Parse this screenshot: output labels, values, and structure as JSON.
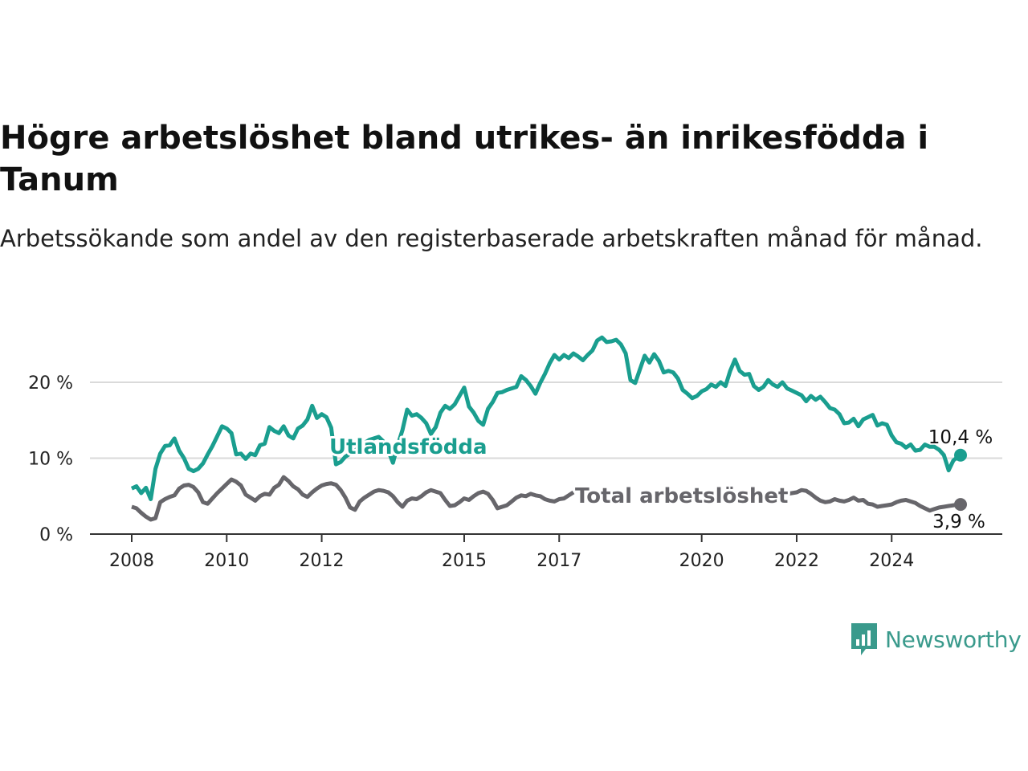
{
  "title": "Högre arbetslöshet bland utrikes- än inrikesfödda i Tanum",
  "subtitle": "Arbetssökande som andel av den registerbaserade arbetskraften månad för månad.",
  "brand": {
    "name": "Newsworthy",
    "icon": "bar-chart-speech-bubble-icon",
    "color": "#3a9a8c"
  },
  "chart_data": {
    "type": "line",
    "ylim": [
      0,
      27
    ],
    "y_ticks": [
      {
        "value": 0,
        "label": "0 %"
      },
      {
        "value": 10,
        "label": "10 %"
      },
      {
        "value": 20,
        "label": "20 %"
      }
    ],
    "x_ticks": [
      {
        "value": 2008.0,
        "label": "2008"
      },
      {
        "value": 2010.0,
        "label": "2010"
      },
      {
        "value": 2012.0,
        "label": "2012"
      },
      {
        "value": 2015.0,
        "label": "2015"
      },
      {
        "value": 2017.0,
        "label": "2017"
      },
      {
        "value": 2020.0,
        "label": "2020"
      },
      {
        "value": 2022.0,
        "label": "2022"
      },
      {
        "value": 2024.0,
        "label": "2024"
      }
    ],
    "xlim": [
      2007.75,
      2025.45
    ],
    "grid": true,
    "series": [
      {
        "name": "Utlandsfödda",
        "color": "#1a9e8f",
        "end_label": "10,4 %",
        "points": [
          [
            2008.0,
            6.0
          ],
          [
            2008.1,
            6.3
          ],
          [
            2008.2,
            5.4
          ],
          [
            2008.3,
            6.1
          ],
          [
            2008.4,
            4.6
          ],
          [
            2008.5,
            8.6
          ],
          [
            2008.6,
            10.6
          ],
          [
            2008.7,
            11.6
          ],
          [
            2008.8,
            11.7
          ],
          [
            2008.9,
            12.6
          ],
          [
            2009.0,
            11.0
          ],
          [
            2009.1,
            10.0
          ],
          [
            2009.2,
            8.6
          ],
          [
            2009.3,
            8.3
          ],
          [
            2009.4,
            8.6
          ],
          [
            2009.5,
            9.3
          ],
          [
            2009.6,
            10.5
          ],
          [
            2009.7,
            11.6
          ],
          [
            2009.8,
            12.9
          ],
          [
            2009.9,
            14.2
          ],
          [
            2010.0,
            13.9
          ],
          [
            2010.1,
            13.3
          ],
          [
            2010.2,
            10.5
          ],
          [
            2010.3,
            10.6
          ],
          [
            2010.4,
            9.9
          ],
          [
            2010.5,
            10.6
          ],
          [
            2010.6,
            10.4
          ],
          [
            2010.7,
            11.7
          ],
          [
            2010.8,
            11.9
          ],
          [
            2010.9,
            14.1
          ],
          [
            2011.0,
            13.6
          ],
          [
            2011.1,
            13.3
          ],
          [
            2011.2,
            14.2
          ],
          [
            2011.3,
            13.0
          ],
          [
            2011.4,
            12.6
          ],
          [
            2011.5,
            13.9
          ],
          [
            2011.6,
            14.3
          ],
          [
            2011.7,
            15.1
          ],
          [
            2011.8,
            16.9
          ],
          [
            2011.9,
            15.3
          ],
          [
            2012.0,
            15.8
          ],
          [
            2012.1,
            15.4
          ],
          [
            2012.2,
            14.0
          ],
          [
            2012.3,
            9.2
          ],
          [
            2012.4,
            9.5
          ],
          [
            2012.5,
            10.2
          ],
          [
            2012.6,
            10.6
          ],
          [
            2012.7,
            11.0
          ],
          [
            2012.8,
            11.5
          ],
          [
            2012.9,
            12.0
          ],
          [
            2013.0,
            12.4
          ],
          [
            2013.1,
            12.6
          ],
          [
            2013.2,
            12.8
          ],
          [
            2013.3,
            12.2
          ],
          [
            2013.4,
            11.0
          ],
          [
            2013.5,
            9.4
          ],
          [
            2013.6,
            11.7
          ],
          [
            2013.7,
            13.7
          ],
          [
            2013.8,
            16.4
          ],
          [
            2013.9,
            15.6
          ],
          [
            2014.0,
            15.8
          ],
          [
            2014.1,
            15.3
          ],
          [
            2014.2,
            14.6
          ],
          [
            2014.3,
            13.2
          ],
          [
            2014.4,
            14.1
          ],
          [
            2014.5,
            16.0
          ],
          [
            2014.6,
            16.9
          ],
          [
            2014.7,
            16.5
          ],
          [
            2014.8,
            17.1
          ],
          [
            2014.9,
            18.2
          ],
          [
            2015.0,
            19.3
          ],
          [
            2015.1,
            16.8
          ],
          [
            2015.2,
            16.0
          ],
          [
            2015.3,
            14.9
          ],
          [
            2015.4,
            14.4
          ],
          [
            2015.5,
            16.5
          ],
          [
            2015.6,
            17.4
          ],
          [
            2015.7,
            18.6
          ],
          [
            2015.8,
            18.7
          ],
          [
            2015.9,
            19.0
          ],
          [
            2016.0,
            19.2
          ],
          [
            2016.1,
            19.4
          ],
          [
            2016.2,
            20.8
          ],
          [
            2016.3,
            20.3
          ],
          [
            2016.4,
            19.5
          ],
          [
            2016.5,
            18.5
          ],
          [
            2016.6,
            19.9
          ],
          [
            2016.7,
            21.1
          ],
          [
            2016.8,
            22.5
          ],
          [
            2016.9,
            23.6
          ],
          [
            2017.0,
            23.0
          ],
          [
            2017.1,
            23.6
          ],
          [
            2017.2,
            23.2
          ],
          [
            2017.3,
            23.8
          ],
          [
            2017.4,
            23.4
          ],
          [
            2017.5,
            22.9
          ],
          [
            2017.6,
            23.6
          ],
          [
            2017.7,
            24.2
          ],
          [
            2017.8,
            25.5
          ],
          [
            2017.9,
            25.9
          ],
          [
            2018.0,
            25.3
          ],
          [
            2018.1,
            25.4
          ],
          [
            2018.2,
            25.6
          ],
          [
            2018.3,
            25.0
          ],
          [
            2018.4,
            23.8
          ],
          [
            2018.5,
            20.3
          ],
          [
            2018.6,
            19.9
          ],
          [
            2018.7,
            21.7
          ],
          [
            2018.8,
            23.5
          ],
          [
            2018.9,
            22.6
          ],
          [
            2019.0,
            23.7
          ],
          [
            2019.1,
            22.8
          ],
          [
            2019.2,
            21.3
          ],
          [
            2019.3,
            21.5
          ],
          [
            2019.4,
            21.3
          ],
          [
            2019.5,
            20.5
          ],
          [
            2019.6,
            19.0
          ],
          [
            2019.7,
            18.5
          ],
          [
            2019.8,
            17.9
          ],
          [
            2019.9,
            18.2
          ],
          [
            2020.0,
            18.8
          ],
          [
            2020.1,
            19.1
          ],
          [
            2020.2,
            19.7
          ],
          [
            2020.3,
            19.4
          ],
          [
            2020.4,
            20.0
          ],
          [
            2020.5,
            19.5
          ],
          [
            2020.6,
            21.5
          ],
          [
            2020.7,
            23.0
          ],
          [
            2020.8,
            21.5
          ],
          [
            2020.9,
            21.0
          ],
          [
            2021.0,
            21.1
          ],
          [
            2021.1,
            19.5
          ],
          [
            2021.2,
            19.0
          ],
          [
            2021.3,
            19.4
          ],
          [
            2021.4,
            20.3
          ],
          [
            2021.5,
            19.7
          ],
          [
            2021.6,
            19.4
          ],
          [
            2021.7,
            20.0
          ],
          [
            2021.8,
            19.2
          ],
          [
            2021.9,
            18.9
          ],
          [
            2022.0,
            18.6
          ],
          [
            2022.1,
            18.3
          ],
          [
            2022.2,
            17.5
          ],
          [
            2022.3,
            18.2
          ],
          [
            2022.4,
            17.7
          ],
          [
            2022.5,
            18.1
          ],
          [
            2022.6,
            17.4
          ],
          [
            2022.7,
            16.6
          ],
          [
            2022.8,
            16.4
          ],
          [
            2022.9,
            15.8
          ],
          [
            2023.0,
            14.6
          ],
          [
            2023.1,
            14.7
          ],
          [
            2023.2,
            15.2
          ],
          [
            2023.3,
            14.2
          ],
          [
            2023.4,
            15.1
          ],
          [
            2023.5,
            15.4
          ],
          [
            2023.6,
            15.7
          ],
          [
            2023.7,
            14.3
          ],
          [
            2023.8,
            14.6
          ],
          [
            2023.9,
            14.4
          ],
          [
            2024.0,
            13.0
          ],
          [
            2024.1,
            12.1
          ],
          [
            2024.2,
            11.9
          ],
          [
            2024.3,
            11.4
          ],
          [
            2024.4,
            11.8
          ],
          [
            2024.5,
            11.0
          ],
          [
            2024.6,
            11.1
          ],
          [
            2024.7,
            11.8
          ],
          [
            2024.8,
            11.5
          ],
          [
            2024.9,
            11.5
          ],
          [
            2025.0,
            11.1
          ],
          [
            2025.1,
            10.4
          ],
          [
            2025.2,
            8.4
          ],
          [
            2025.3,
            9.7
          ],
          [
            2025.4,
            10.2
          ],
          [
            2025.45,
            10.4
          ]
        ]
      },
      {
        "name": "Total arbetslöshet",
        "color": "#67666b",
        "end_label": "3,9 %",
        "points": [
          [
            2008.0,
            3.6
          ],
          [
            2008.1,
            3.4
          ],
          [
            2008.2,
            2.8
          ],
          [
            2008.3,
            2.3
          ],
          [
            2008.4,
            1.9
          ],
          [
            2008.5,
            2.1
          ],
          [
            2008.6,
            4.2
          ],
          [
            2008.7,
            4.6
          ],
          [
            2008.8,
            4.9
          ],
          [
            2008.9,
            5.1
          ],
          [
            2009.0,
            6.0
          ],
          [
            2009.1,
            6.4
          ],
          [
            2009.2,
            6.5
          ],
          [
            2009.3,
            6.2
          ],
          [
            2009.4,
            5.5
          ],
          [
            2009.5,
            4.2
          ],
          [
            2009.6,
            4.0
          ],
          [
            2009.7,
            4.7
          ],
          [
            2009.8,
            5.4
          ],
          [
            2009.9,
            6.0
          ],
          [
            2010.0,
            6.6
          ],
          [
            2010.1,
            7.2
          ],
          [
            2010.2,
            6.9
          ],
          [
            2010.3,
            6.4
          ],
          [
            2010.4,
            5.2
          ],
          [
            2010.5,
            4.8
          ],
          [
            2010.6,
            4.4
          ],
          [
            2010.7,
            5.0
          ],
          [
            2010.8,
            5.3
          ],
          [
            2010.9,
            5.2
          ],
          [
            2011.0,
            6.1
          ],
          [
            2011.1,
            6.5
          ],
          [
            2011.2,
            7.5
          ],
          [
            2011.3,
            7.0
          ],
          [
            2011.4,
            6.3
          ],
          [
            2011.5,
            5.9
          ],
          [
            2011.6,
            5.2
          ],
          [
            2011.7,
            4.9
          ],
          [
            2011.8,
            5.5
          ],
          [
            2011.9,
            6.0
          ],
          [
            2012.0,
            6.4
          ],
          [
            2012.1,
            6.6
          ],
          [
            2012.2,
            6.7
          ],
          [
            2012.3,
            6.5
          ],
          [
            2012.4,
            5.8
          ],
          [
            2012.5,
            4.8
          ],
          [
            2012.6,
            3.5
          ],
          [
            2012.7,
            3.2
          ],
          [
            2012.8,
            4.3
          ],
          [
            2012.9,
            4.8
          ],
          [
            2013.0,
            5.2
          ],
          [
            2013.1,
            5.6
          ],
          [
            2013.2,
            5.8
          ],
          [
            2013.3,
            5.7
          ],
          [
            2013.4,
            5.5
          ],
          [
            2013.5,
            5.0
          ],
          [
            2013.6,
            4.2
          ],
          [
            2013.7,
            3.6
          ],
          [
            2013.8,
            4.4
          ],
          [
            2013.9,
            4.7
          ],
          [
            2014.0,
            4.6
          ],
          [
            2014.1,
            5.0
          ],
          [
            2014.2,
            5.5
          ],
          [
            2014.3,
            5.8
          ],
          [
            2014.4,
            5.6
          ],
          [
            2014.5,
            5.4
          ],
          [
            2014.6,
            4.5
          ],
          [
            2014.7,
            3.7
          ],
          [
            2014.8,
            3.8
          ],
          [
            2014.9,
            4.2
          ],
          [
            2015.0,
            4.7
          ],
          [
            2015.1,
            4.5
          ],
          [
            2015.2,
            5.0
          ],
          [
            2015.3,
            5.4
          ],
          [
            2015.4,
            5.6
          ],
          [
            2015.5,
            5.3
          ],
          [
            2015.6,
            4.5
          ],
          [
            2015.7,
            3.4
          ],
          [
            2015.8,
            3.6
          ],
          [
            2015.9,
            3.8
          ],
          [
            2016.0,
            4.3
          ],
          [
            2016.1,
            4.8
          ],
          [
            2016.2,
            5.1
          ],
          [
            2016.3,
            5.0
          ],
          [
            2016.4,
            5.3
          ],
          [
            2016.5,
            5.1
          ],
          [
            2016.6,
            5.0
          ],
          [
            2016.7,
            4.6
          ],
          [
            2016.8,
            4.4
          ],
          [
            2016.9,
            4.3
          ],
          [
            2017.0,
            4.6
          ],
          [
            2017.1,
            4.7
          ],
          [
            2017.2,
            5.1
          ],
          [
            2017.3,
            5.5
          ]
        ]
      }
    ]
  }
}
